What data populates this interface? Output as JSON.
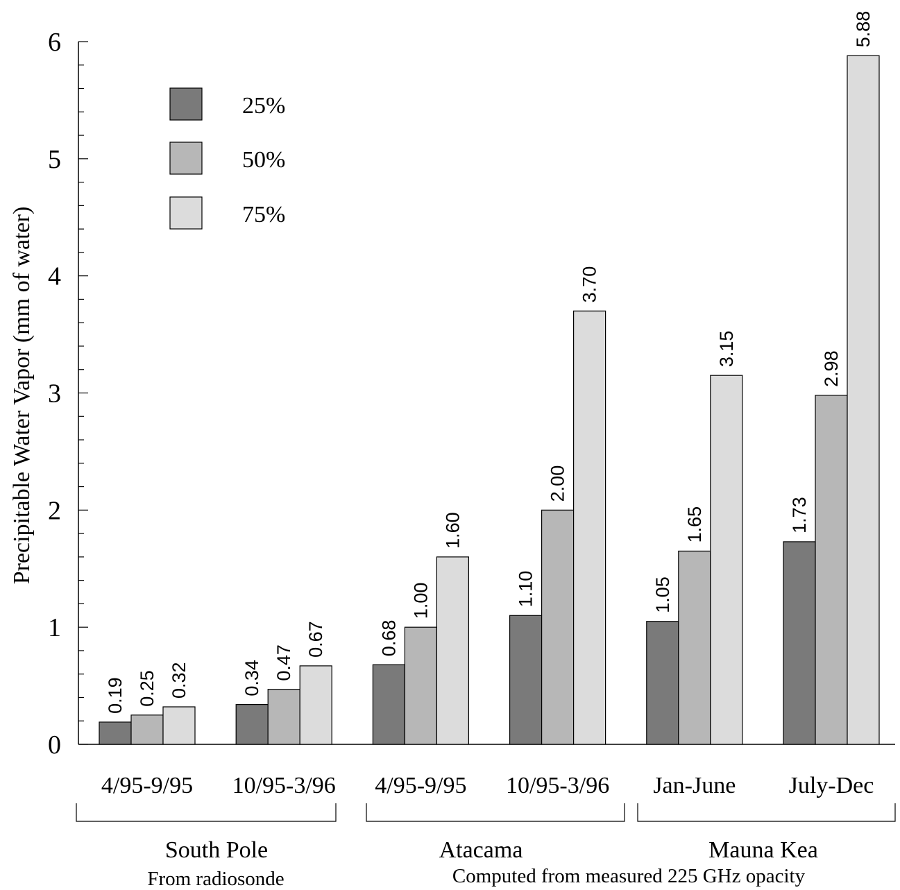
{
  "chart_data": {
    "type": "bar",
    "ylabel": "Precipitable Water Vapor (mm of water)",
    "ylim": [
      0,
      6
    ],
    "yticks": [
      0,
      1,
      2,
      3,
      4,
      5,
      6
    ],
    "grid": false,
    "legend_position": "top-left",
    "categories": [
      "4/95-9/95",
      "10/95-3/96",
      "4/95-9/95",
      "10/95-3/96",
      "Jan-June",
      "July-Dec"
    ],
    "series": [
      {
        "name": "25%",
        "color": "#7a7a7a",
        "values": [
          0.19,
          0.34,
          0.68,
          1.1,
          1.05,
          1.73
        ],
        "labels": [
          "0.19",
          "0.34",
          "0.68",
          "1.10",
          "1.05",
          "1.73"
        ]
      },
      {
        "name": "50%",
        "color": "#b7b7b7",
        "values": [
          0.25,
          0.47,
          1.0,
          2.0,
          1.65,
          2.98
        ],
        "labels": [
          "0.25",
          "0.47",
          "1.00",
          "2.00",
          "1.65",
          "2.98"
        ]
      },
      {
        "name": "75%",
        "color": "#dcdcdc",
        "values": [
          0.32,
          0.67,
          1.6,
          3.7,
          3.15,
          5.88
        ],
        "labels": [
          "0.32",
          "0.67",
          "1.60",
          "3.70",
          "3.15",
          "5.88"
        ]
      }
    ],
    "groups": [
      {
        "name": "South Pole",
        "subtitle": "From radiosonde",
        "categories": [
          0,
          1
        ]
      },
      {
        "name": "Atacama",
        "subtitle": "",
        "categories": [
          2,
          3
        ]
      },
      {
        "name": "Mauna Kea",
        "subtitle": "",
        "categories": [
          4,
          5
        ]
      }
    ],
    "footnote": "Computed from measured 225 GHz opacity"
  }
}
